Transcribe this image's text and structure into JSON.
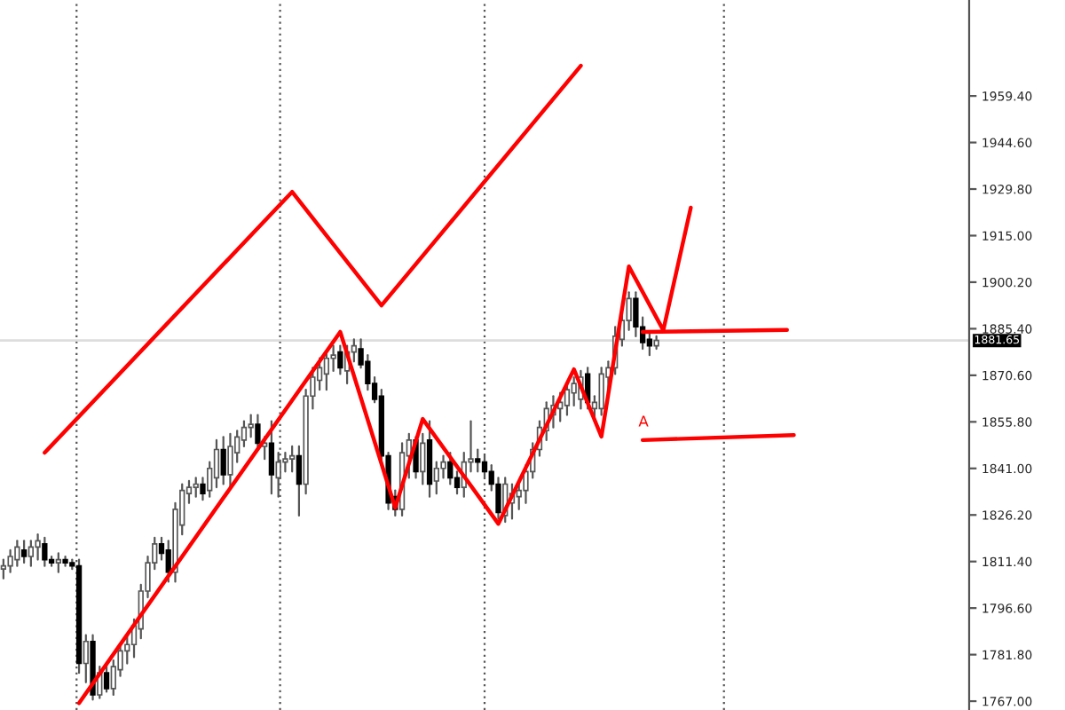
{
  "chart_data": {
    "type": "candlestick",
    "ylim": [
      1764.2,
      1989.9
    ],
    "yticks": [
      {
        "value": 1767.0,
        "label": "1767.00"
      },
      {
        "value": 1781.8,
        "label": "1781.80"
      },
      {
        "value": 1796.6,
        "label": "1796.60"
      },
      {
        "value": 1811.4,
        "label": "1811.40"
      },
      {
        "value": 1826.2,
        "label": "1826.20"
      },
      {
        "value": 1841.0,
        "label": "1841.00"
      },
      {
        "value": 1855.8,
        "label": "1855.80"
      },
      {
        "value": 1870.6,
        "label": "1870.60"
      },
      {
        "value": 1885.4,
        "label": "1885.40"
      },
      {
        "value": 1900.2,
        "label": "1900.20"
      },
      {
        "value": 1915.0,
        "label": "1915.00"
      },
      {
        "value": 1929.8,
        "label": "1929.80"
      },
      {
        "value": 1944.6,
        "label": "1944.60"
      },
      {
        "value": 1959.4,
        "label": "1959.40"
      }
    ],
    "categories": [
      null,
      null,
      null,
      null,
      null,
      null,
      null,
      null,
      null,
      null,
      null,
      null,
      null,
      null,
      null,
      null,
      null,
      null,
      null,
      null,
      null,
      null,
      null,
      null,
      null,
      null,
      null,
      null,
      null,
      null,
      null,
      null,
      null,
      null,
      null,
      null,
      null,
      null,
      null,
      null,
      null,
      null,
      null,
      null,
      null,
      null,
      null,
      null,
      null,
      null,
      null,
      null,
      null,
      null,
      null,
      null,
      null,
      null,
      null,
      null,
      null,
      null,
      null,
      null,
      null,
      null,
      null,
      null,
      null,
      null,
      null,
      null,
      null,
      null,
      null,
      null,
      null,
      null,
      null,
      null,
      null,
      null,
      null,
      null,
      null,
      null,
      null,
      null,
      null,
      null,
      null,
      null,
      null,
      null,
      null,
      null,
      null,
      null,
      null,
      null,
      null,
      null,
      null,
      null,
      null,
      null,
      null,
      null,
      null,
      null,
      null,
      null,
      null,
      null,
      null,
      null,
      null,
      null,
      null,
      null,
      null,
      null,
      null,
      null,
      null,
      null,
      null,
      null,
      null,
      null,
      null,
      null,
      null,
      null,
      null,
      null,
      null,
      null,
      null,
      null,
      null
    ],
    "tick_labels": "y",
    "marker": "none",
    "line_style": "solid",
    "ref_lines": [
      {
        "axis": "y",
        "value": 1881.65,
        "label": "1881.65",
        "color": "#dddddd"
      }
    ],
    "annotations": [
      "A"
    ],
    "series": [
      {
        "ohlc": [
          [
            1809,
            1812,
            1806,
            1810
          ],
          [
            1810,
            1815,
            1808,
            1813
          ],
          [
            1812,
            1818,
            1810,
            1816
          ],
          [
            1815,
            1818,
            1811,
            1813
          ],
          [
            1813,
            1818,
            1810,
            1816
          ],
          [
            1816,
            1820,
            1812,
            1818
          ],
          [
            1817,
            1819,
            1810,
            1812
          ],
          [
            1812,
            1813,
            1810,
            1811
          ],
          [
            1811,
            1814,
            1808,
            1812
          ],
          [
            1812,
            1813,
            1810,
            1811
          ],
          [
            1811,
            1812,
            1809,
            1810
          ],
          [
            1810,
            1812,
            1776,
            1779
          ],
          [
            1779,
            1788,
            1773,
            1786
          ],
          [
            1786,
            1788,
            1767.5,
            1769
          ],
          [
            1769,
            1778,
            1768,
            1776
          ],
          [
            1776,
            1779,
            1770,
            1771
          ],
          [
            1771,
            1780,
            1769,
            1778
          ],
          [
            1777,
            1785,
            1775,
            1783
          ],
          [
            1783,
            1788,
            1779,
            1785
          ],
          [
            1785,
            1793,
            1781,
            1791
          ],
          [
            1790,
            1804,
            1787,
            1802
          ],
          [
            1802,
            1813,
            1800,
            1811
          ],
          [
            1811,
            1819,
            1809,
            1817
          ],
          [
            1817,
            1819,
            1812,
            1814
          ],
          [
            1815,
            1818,
            1805,
            1808
          ],
          [
            1808,
            1830,
            1805,
            1828
          ],
          [
            1823,
            1836,
            1820,
            1834
          ],
          [
            1833,
            1837,
            1830,
            1835
          ],
          [
            1835,
            1838,
            1832,
            1836
          ],
          [
            1836,
            1838,
            1831,
            1833
          ],
          [
            1834,
            1843,
            1832,
            1841
          ],
          [
            1838,
            1850,
            1835,
            1847
          ],
          [
            1847,
            1851,
            1836,
            1839
          ],
          [
            1839,
            1852,
            1835,
            1848
          ],
          [
            1846,
            1853,
            1843,
            1851
          ],
          [
            1850,
            1856,
            1848,
            1854
          ],
          [
            1854,
            1858,
            1851,
            1855
          ],
          [
            1855,
            1858,
            1847,
            1849
          ],
          [
            1848,
            1851,
            1844,
            1849
          ],
          [
            1849,
            1856,
            1833,
            1839
          ],
          [
            1838,
            1846,
            1832,
            1843
          ],
          [
            1843,
            1846,
            1840,
            1844
          ],
          [
            1844,
            1848,
            1840,
            1845
          ],
          [
            1845,
            1848,
            1826,
            1836
          ],
          [
            1836,
            1866,
            1833,
            1864
          ],
          [
            1864,
            1873,
            1860,
            1870
          ],
          [
            1869,
            1876,
            1866,
            1873
          ],
          [
            1871,
            1878,
            1866,
            1876
          ],
          [
            1876,
            1880,
            1872,
            1877
          ],
          [
            1878,
            1880,
            1871,
            1873
          ],
          [
            1872,
            1880,
            1868,
            1878
          ],
          [
            1878,
            1882,
            1875,
            1880
          ],
          [
            1879,
            1882,
            1873,
            1874
          ],
          [
            1875,
            1877,
            1866,
            1868
          ],
          [
            1868,
            1870,
            1862,
            1863
          ],
          [
            1864,
            1866,
            1843,
            1845
          ],
          [
            1845,
            1846,
            1828,
            1830
          ],
          [
            1832,
            1834,
            1826,
            1828
          ],
          [
            1828,
            1849,
            1826,
            1846
          ],
          [
            1845,
            1852,
            1838,
            1850
          ],
          [
            1850,
            1851,
            1838,
            1840
          ],
          [
            1840,
            1852,
            1836,
            1849
          ],
          [
            1850,
            1856,
            1832,
            1836
          ],
          [
            1837,
            1843,
            1833,
            1841
          ],
          [
            1841,
            1845,
            1838,
            1843
          ],
          [
            1843,
            1846,
            1836,
            1838
          ],
          [
            1838,
            1840,
            1833,
            1835
          ],
          [
            1835,
            1846,
            1832,
            1843
          ],
          [
            1843,
            1856,
            1840,
            1844
          ],
          [
            1844,
            1847,
            1840,
            1843
          ],
          [
            1843,
            1845,
            1838,
            1840
          ],
          [
            1840,
            1842,
            1834,
            1836
          ],
          [
            1836,
            1838,
            1825,
            1827
          ],
          [
            1826,
            1838,
            1824,
            1836
          ],
          [
            1830,
            1836,
            1825,
            1833
          ],
          [
            1832,
            1837,
            1828,
            1834
          ],
          [
            1834,
            1842,
            1830,
            1840
          ],
          [
            1840,
            1849,
            1838,
            1847
          ],
          [
            1847,
            1856,
            1845,
            1854
          ],
          [
            1853,
            1862,
            1850,
            1860
          ],
          [
            1858,
            1864,
            1854,
            1861
          ],
          [
            1860,
            1865,
            1856,
            1862
          ],
          [
            1861,
            1868,
            1858,
            1866
          ],
          [
            1865,
            1870,
            1861,
            1868
          ],
          [
            1863,
            1872,
            1860,
            1870
          ],
          [
            1871,
            1873,
            1860,
            1862
          ],
          [
            1860,
            1864,
            1856,
            1862
          ],
          [
            1860,
            1873,
            1858,
            1871
          ],
          [
            1870,
            1875,
            1866,
            1873
          ],
          [
            1873,
            1886,
            1871,
            1883
          ],
          [
            1882,
            1890,
            1880,
            1888
          ],
          [
            1888,
            1897,
            1885,
            1895
          ],
          [
            1895,
            1897,
            1883,
            1886
          ],
          [
            1886,
            1889,
            1879,
            1881
          ],
          [
            1882,
            1884,
            1877,
            1880
          ],
          [
            1880,
            1883,
            1879,
            1881.65
          ],
          null,
          null,
          null,
          null,
          null,
          null,
          null,
          null,
          null,
          null,
          null,
          null,
          null,
          null,
          null,
          null,
          null,
          null,
          null,
          null,
          null,
          null,
          null,
          null,
          null,
          null,
          null,
          null,
          null,
          null,
          null,
          null,
          null,
          null,
          null,
          null,
          null,
          null,
          null,
          null,
          null,
          null,
          null,
          null,
          null
        ]
      },
      {
        "type": "line",
        "color": "#ff0000",
        "values": [
          null,
          null,
          null,
          null,
          null,
          null,
          1846.0,
          null,
          null,
          null,
          null,
          null,
          null,
          null,
          null,
          null,
          null,
          null,
          null,
          null,
          null,
          null,
          null,
          null,
          null,
          null,
          null,
          null,
          null,
          null,
          null,
          null,
          null,
          null,
          null,
          null,
          null,
          null,
          null,
          null,
          null,
          null,
          1928.9,
          null,
          null,
          null,
          null,
          null,
          null,
          null,
          null,
          null,
          null,
          null,
          null,
          1892.8,
          null,
          null,
          null,
          null,
          null,
          null,
          null,
          null,
          null,
          null,
          null,
          null,
          null,
          null,
          null,
          null,
          null,
          null,
          null,
          null,
          null,
          null,
          null,
          null,
          null,
          null,
          null,
          null,
          1969.0,
          null,
          null,
          null,
          null,
          null,
          null,
          null,
          null,
          null,
          null,
          null,
          null,
          null,
          null,
          null,
          null,
          null,
          null,
          null,
          null,
          null,
          null,
          null,
          null,
          null,
          null,
          null,
          null,
          null,
          null,
          null,
          null,
          null,
          null,
          null,
          null,
          null,
          null,
          null,
          null,
          null,
          null,
          null,
          null,
          null,
          null,
          null,
          null,
          null,
          null,
          null,
          null,
          null,
          null,
          null,
          null
        ]
      },
      {
        "type": "line",
        "color": "#ff0000",
        "values": [
          null,
          null,
          null,
          null,
          null,
          null,
          null,
          null,
          null,
          null,
          null,
          1766.4,
          null,
          null,
          null,
          null,
          null,
          null,
          null,
          null,
          null,
          null,
          null,
          null,
          null,
          null,
          null,
          null,
          null,
          null,
          null,
          null,
          null,
          null,
          null,
          null,
          null,
          null,
          null,
          null,
          null,
          null,
          null,
          null,
          null,
          null,
          null,
          null,
          null,
          1884.4,
          null,
          null,
          null,
          null,
          null,
          null,
          null,
          1828.5,
          null,
          null,
          null,
          1856.7,
          null,
          null,
          null,
          null,
          null,
          null,
          null,
          null,
          null,
          null,
          1823.4,
          null,
          null,
          null,
          null,
          null,
          null,
          null,
          null,
          null,
          null,
          1872.5,
          null,
          null,
          null,
          1851.1,
          null,
          null,
          null,
          1905.2,
          null,
          null,
          null,
          null,
          1884.9,
          null,
          null,
          null,
          1923.9,
          null,
          null,
          null,
          null,
          null,
          null,
          null,
          null,
          null,
          null,
          null,
          null,
          null,
          null,
          null,
          null,
          null,
          null,
          null,
          null,
          null,
          null,
          null,
          null,
          null,
          null,
          null,
          null,
          null,
          null,
          null,
          null,
          null,
          null,
          null,
          null,
          null,
          null,
          null,
          null
        ]
      },
      {
        "type": "line",
        "color": "#ff0000",
        "values": [
          null,
          null,
          null,
          null,
          null,
          null,
          null,
          null,
          null,
          null,
          null,
          null,
          null,
          null,
          null,
          null,
          null,
          null,
          null,
          null,
          null,
          null,
          null,
          null,
          null,
          null,
          null,
          null,
          null,
          null,
          null,
          null,
          null,
          null,
          null,
          null,
          null,
          null,
          null,
          null,
          null,
          null,
          null,
          null,
          null,
          null,
          null,
          null,
          null,
          null,
          null,
          null,
          null,
          null,
          null,
          null,
          null,
          null,
          null,
          null,
          null,
          null,
          null,
          null,
          null,
          null,
          null,
          null,
          null,
          null,
          null,
          null,
          null,
          null,
          null,
          null,
          null,
          null,
          null,
          null,
          null,
          null,
          null,
          null,
          null,
          null,
          null,
          null,
          null,
          null,
          null,
          null,
          null,
          1884.4,
          null,
          null,
          null,
          null,
          null,
          null,
          null,
          null,
          null,
          null,
          null,
          null,
          null,
          null,
          null,
          null,
          null,
          null,
          null,
          null,
          1885.0,
          null,
          null,
          null,
          null,
          null,
          null,
          null,
          null,
          null,
          null,
          null,
          null,
          null,
          null,
          null,
          null,
          null,
          null,
          null,
          null,
          null,
          null,
          null,
          null,
          null,
          null
        ]
      },
      {
        "type": "line",
        "color": "#ff0000",
        "values": [
          null,
          null,
          null,
          null,
          null,
          null,
          null,
          null,
          null,
          null,
          null,
          null,
          null,
          null,
          null,
          null,
          null,
          null,
          null,
          null,
          null,
          null,
          null,
          null,
          null,
          null,
          null,
          null,
          null,
          null,
          null,
          null,
          null,
          null,
          null,
          null,
          null,
          null,
          null,
          null,
          null,
          null,
          null,
          null,
          null,
          null,
          null,
          null,
          null,
          null,
          null,
          null,
          null,
          null,
          null,
          null,
          null,
          null,
          null,
          null,
          null,
          null,
          null,
          null,
          null,
          null,
          null,
          null,
          null,
          null,
          null,
          null,
          null,
          null,
          null,
          null,
          null,
          null,
          null,
          null,
          null,
          null,
          null,
          null,
          null,
          null,
          null,
          null,
          null,
          null,
          null,
          null,
          null,
          1850.0,
          null,
          null,
          null,
          null,
          null,
          null,
          null,
          null,
          null,
          null,
          null,
          null,
          null,
          null,
          null,
          null,
          null,
          null,
          null,
          null,
          null,
          1851.6,
          null,
          null,
          null,
          null,
          null,
          null,
          null,
          null,
          null,
          null,
          null,
          null,
          null,
          null,
          null,
          null,
          null,
          null,
          null,
          null,
          null,
          null,
          null,
          null,
          null
        ]
      }
    ]
  }
}
